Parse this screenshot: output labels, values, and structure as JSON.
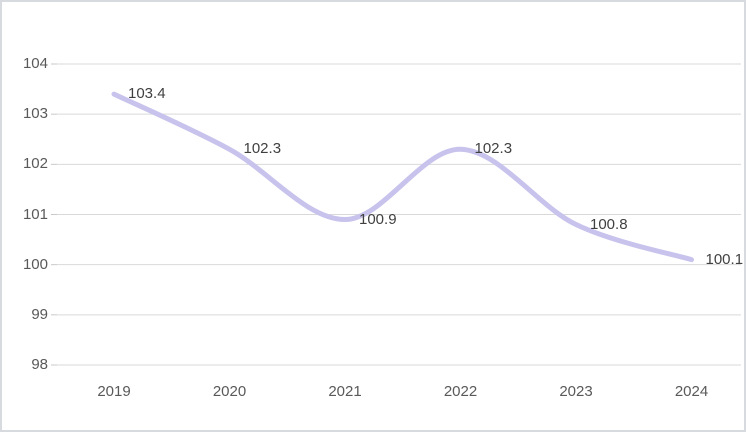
{
  "chart_data": {
    "type": "line",
    "title": "",
    "categories": [
      "2019",
      "2020",
      "2021",
      "2022",
      "2023",
      "2024"
    ],
    "series": [
      {
        "name": "series1",
        "values": [
          103.4,
          102.3,
          100.9,
          102.3,
          100.8,
          100.1
        ],
        "data_labels": [
          "103.4",
          "102.3",
          "100.9",
          "102.3",
          "100.8",
          "100.1"
        ],
        "data_label_position": "right",
        "line_color": "#c7c3ec",
        "smoothed": true,
        "markers": false
      }
    ],
    "xlabel": "",
    "ylabel": "",
    "ylim": [
      98,
      104
    ],
    "ytick_step": 1,
    "yticks": [
      "104",
      "103",
      "102",
      "101",
      "100",
      "99",
      "98"
    ],
    "grid": true,
    "legend": "none",
    "colors": {
      "gridline": "#d9d9d9",
      "tick": "#c9c9c9",
      "axis_text": "#595959",
      "data_label_text": "#404040",
      "frame_border": "#d7dade",
      "background": "#ffffff"
    }
  }
}
